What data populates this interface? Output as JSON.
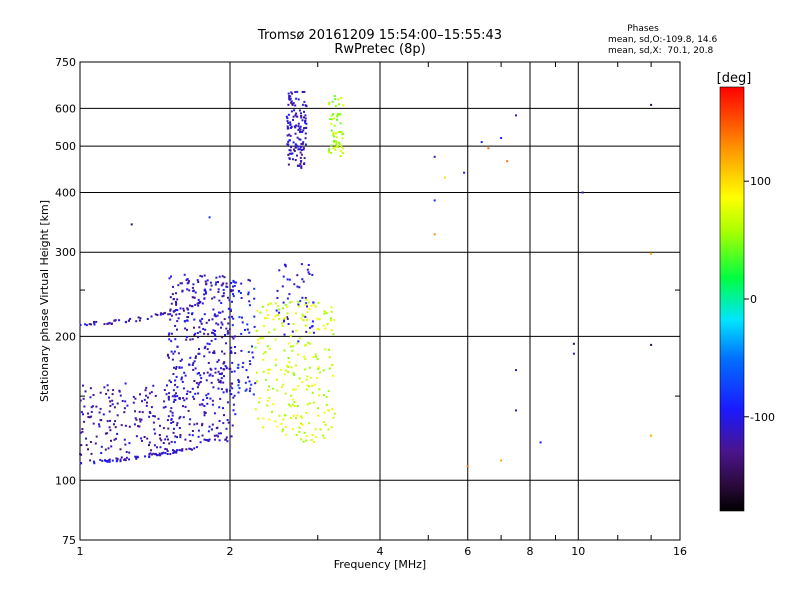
{
  "chart_data": {
    "type": "scatter",
    "title": "Tromsø 20161209 15:54:00–15:55:43",
    "subtitle": "RwPretec (8p)",
    "xlabel": "Frequency [MHz]",
    "ylabel": "Stationary phase Virtual Height [km]",
    "xscale": "log",
    "yscale": "log",
    "xlim": [
      1,
      16
    ],
    "ylim": [
      75,
      750
    ],
    "x_ticks": [
      1,
      2,
      4,
      6,
      8,
      10,
      16
    ],
    "y_ticks": [
      75,
      100,
      200,
      300,
      400,
      500,
      600,
      750
    ],
    "grid": true,
    "phase_stats": {
      "title": "Phases",
      "line1": "mean, sd,O:-109.8, 14.6",
      "line2": "mean, sd,X:  70.1, 20.8"
    },
    "colorbar": {
      "label": "[deg]",
      "range": [
        -180,
        180
      ],
      "ticks": [
        100,
        0,
        -100
      ],
      "colormap": "rainbow"
    },
    "clusters": [
      {
        "region": "o-trace-lower",
        "phase": -110,
        "count": 70,
        "f": [
          1.0,
          1.72
        ],
        "h": [
          109,
          117
        ],
        "pattern": "curve-lower"
      },
      {
        "region": "o-trace-upper",
        "phase": -115,
        "count": 55,
        "f": [
          1.0,
          1.75
        ],
        "h": [
          213,
          235
        ],
        "pattern": "curve-upper"
      },
      {
        "region": "o-spread-low",
        "phase": -120,
        "count": 170,
        "f": [
          1.0,
          1.55
        ],
        "h": [
          113,
          160
        ],
        "pattern": "box"
      },
      {
        "region": "o-spread-main",
        "phase": -112,
        "count": 420,
        "f": [
          1.5,
          2.05
        ],
        "h": [
          120,
          270
        ],
        "pattern": "box"
      },
      {
        "region": "o-spread-edge",
        "phase": -95,
        "count": 70,
        "f": [
          2.0,
          2.25
        ],
        "h": [
          150,
          265
        ],
        "pattern": "box"
      },
      {
        "region": "o-cluster-2.5",
        "phase": -105,
        "count": 50,
        "f": [
          2.45,
          2.95
        ],
        "h": [
          195,
          285
        ],
        "pattern": "box"
      },
      {
        "region": "x-trace-main",
        "phase": 70,
        "count": 240,
        "f": [
          2.25,
          3.25
        ],
        "h": [
          120,
          240
        ],
        "pattern": "box"
      },
      {
        "region": "o-f2-column",
        "phase": -112,
        "count": 140,
        "f": [
          2.6,
          2.85
        ],
        "h": [
          450,
          650
        ],
        "pattern": "box"
      },
      {
        "region": "x-f2-column",
        "phase": 58,
        "count": 60,
        "f": [
          3.15,
          3.38
        ],
        "h": [
          475,
          640
        ],
        "pattern": "box"
      }
    ],
    "scattered_points": [
      {
        "f": 1.27,
        "h": 343,
        "phase": -150
      },
      {
        "f": 1.82,
        "h": 355,
        "phase": -80
      },
      {
        "f": 5.15,
        "h": 475,
        "phase": -115
      },
      {
        "f": 5.15,
        "h": 385,
        "phase": -90
      },
      {
        "f": 5.15,
        "h": 327,
        "phase": 130
      },
      {
        "f": 5.4,
        "h": 430,
        "phase": 100
      },
      {
        "f": 5.9,
        "h": 440,
        "phase": -90
      },
      {
        "f": 6.4,
        "h": 510,
        "phase": -95
      },
      {
        "f": 6.6,
        "h": 495,
        "phase": 140
      },
      {
        "f": 7.0,
        "h": 520,
        "phase": -90
      },
      {
        "f": 7.2,
        "h": 465,
        "phase": 140
      },
      {
        "f": 7.5,
        "h": 580,
        "phase": -110
      },
      {
        "f": 7.5,
        "h": 170,
        "phase": -120
      },
      {
        "f": 7.5,
        "h": 140,
        "phase": -115
      },
      {
        "f": 6.0,
        "h": 107,
        "phase": 140
      },
      {
        "f": 7.0,
        "h": 110,
        "phase": 120
      },
      {
        "f": 8.4,
        "h": 120,
        "phase": -95
      },
      {
        "f": 9.8,
        "h": 193,
        "phase": -150
      },
      {
        "f": 9.8,
        "h": 184,
        "phase": -115
      },
      {
        "f": 10.2,
        "h": 400,
        "phase": -120
      },
      {
        "f": 14.0,
        "h": 610,
        "phase": -150
      },
      {
        "f": 14.0,
        "h": 298,
        "phase": 120
      },
      {
        "f": 14.0,
        "h": 192,
        "phase": -150
      },
      {
        "f": 14.0,
        "h": 124,
        "phase": 120
      }
    ]
  }
}
